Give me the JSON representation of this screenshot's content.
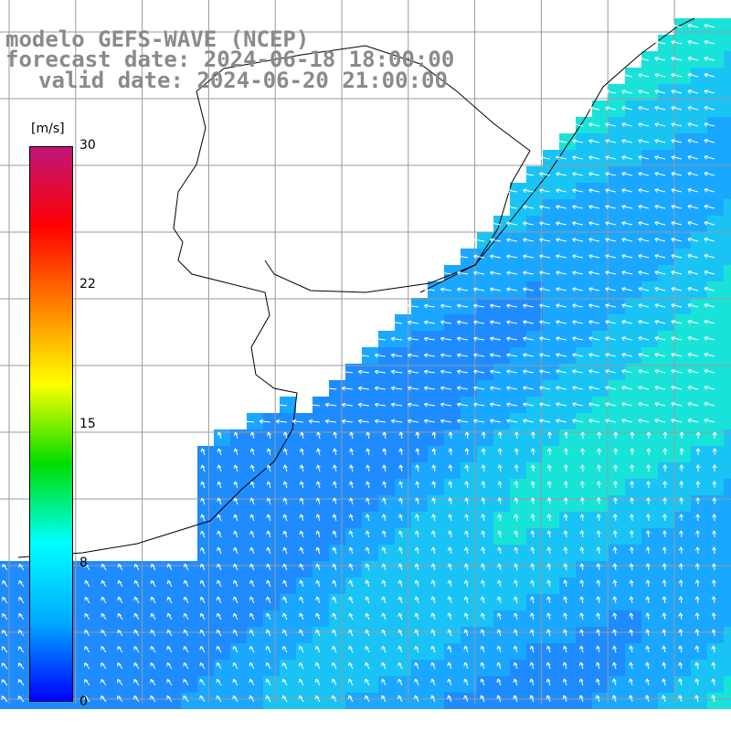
{
  "title": {
    "model": "modelo GEFS-WAVE (NCEP)",
    "forecast": "forecast date: 2024-06-18 18:00:00",
    "valid": "valid date: 2024-06-20 21:00:00"
  },
  "colorbar": {
    "unit": "[m/s]",
    "ticks": [
      "30",
      "22",
      "15",
      "8",
      "0"
    ],
    "range": [
      0,
      30
    ],
    "colors": [
      "#0000ff",
      "#00aaff",
      "#00ffff",
      "#00dd00",
      "#ffff00",
      "#ff8000",
      "#ff0000",
      "#c0157a"
    ]
  },
  "map": {
    "variable": "wind speed and direction",
    "land_color": "#ffffff",
    "ocean_colormap": "rainbow",
    "grid_lines": true,
    "arrows": "white wind vectors"
  }
}
